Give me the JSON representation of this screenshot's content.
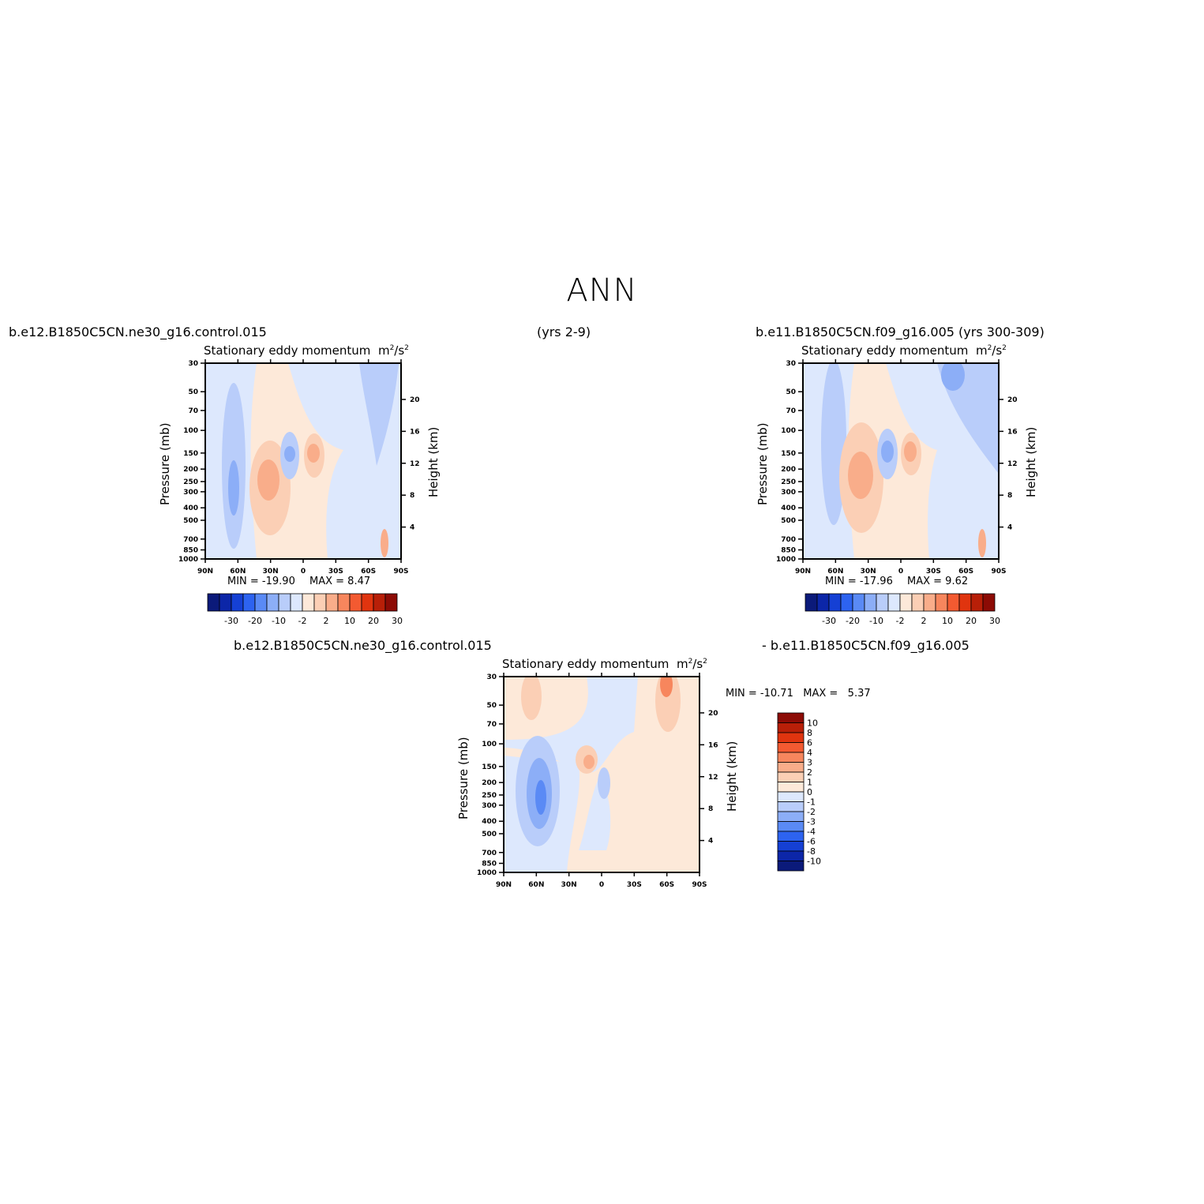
{
  "page": {
    "title": "ANN",
    "top_left_case": "b.e12.B1850C5CN.ne30_g16.control.015",
    "top_center_years": "(yrs 2-9)",
    "top_right_case": "b.e11.B1850C5CN.f09_g16.005 (yrs 300-309)",
    "bottom_case_left": "b.e12.B1850C5CN.ne30_g16.control.015",
    "bottom_case_right": "- b.e11.B1850C5CN.f09_g16.005"
  },
  "panel_title_text": "Stationary eddy momentum",
  "units": {
    "base": "m",
    "exp1": "2",
    "mid": "/s",
    "exp2": "2"
  },
  "axes": {
    "ylabel": "Pressure (mb)",
    "y2label": "Height (km)",
    "pressure_ticks": [
      "30",
      "50",
      "70",
      "100",
      "150",
      "200",
      "250",
      "300",
      "400",
      "500",
      "700",
      "850",
      "1000"
    ],
    "pressure_values": [
      30,
      50,
      70,
      100,
      150,
      200,
      250,
      300,
      400,
      500,
      700,
      850,
      1000
    ],
    "height_ticks": [
      "20",
      "16",
      "12",
      "8",
      "4"
    ],
    "height_values": [
      20,
      16,
      12,
      8,
      4
    ],
    "lat_ticks": [
      "90N",
      "60N",
      "30N",
      "0",
      "30S",
      "60S",
      "90S"
    ],
    "lat_values": [
      90,
      60,
      30,
      0,
      -30,
      -60,
      -90
    ]
  },
  "panels": {
    "p1": {
      "min": "MIN = -19.90",
      "max": "MAX = 8.47"
    },
    "p2": {
      "min": "MIN = -17.96",
      "max": "MAX = 9.62"
    },
    "p3": {
      "minmax": "MIN = -10.71   MAX =   5.37"
    }
  },
  "colorbar_main": {
    "labels": [
      "-30",
      "-20",
      "-10",
      "-2",
      "2",
      "10",
      "20",
      "30"
    ],
    "colors": [
      "#0b1a7a",
      "#0c26a8",
      "#1540d4",
      "#2d63f0",
      "#5a8af5",
      "#8caef7",
      "#b9cdfa",
      "#dde8fd",
      "#fde9d9",
      "#fbcfb5",
      "#f9ad8a",
      "#f7865d",
      "#f35a31",
      "#e0340f",
      "#b81f08",
      "#8c0b05"
    ]
  },
  "colorbar_diff": {
    "labels": [
      "10",
      "8",
      "6",
      "4",
      "3",
      "2",
      "1",
      "0",
      "-1",
      "-2",
      "-3",
      "-4",
      "-6",
      "-8",
      "-10"
    ],
    "colors": [
      "#8c0b05",
      "#b81f08",
      "#e0340f",
      "#f35a31",
      "#f7865d",
      "#f9ad8a",
      "#fbcfb5",
      "#fde9d9",
      "#dde8fd",
      "#b9cdfa",
      "#8caef7",
      "#5a8af5",
      "#2d63f0",
      "#1540d4",
      "#0c26a8",
      "#0b1a7a"
    ]
  },
  "chart_data": [
    {
      "type": "heatmap",
      "title": "Stationary eddy momentum m2/s2",
      "case": "b.e12.B1850C5CN.ne30_g16.control.015",
      "xlabel": "latitude",
      "ylabel": "Pressure (mb)",
      "y2label": "Height (km)",
      "xlim": [
        90,
        -90
      ],
      "ylim": [
        1000,
        30
      ],
      "ylog": true,
      "min": -19.9,
      "max": 8.47,
      "levels": [
        -30,
        -25,
        -20,
        -15,
        -10,
        -5,
        -2,
        -1,
        1,
        2,
        5,
        10,
        15,
        20,
        25,
        30
      ],
      "features": [
        {
          "lat": 60,
          "p": 280,
          "value": -15
        },
        {
          "lat": 30,
          "p": 280,
          "value": 6
        },
        {
          "lat": 10,
          "p": 140,
          "value": -12
        },
        {
          "lat": -10,
          "p": 140,
          "value": 7
        }
      ]
    },
    {
      "type": "heatmap",
      "title": "Stationary eddy momentum m2/s2",
      "case": "b.e11.B1850C5CN.f09_g16.005 (yrs 300-309)",
      "xlabel": "latitude",
      "ylabel": "Pressure (mb)",
      "y2label": "Height (km)",
      "xlim": [
        90,
        -90
      ],
      "ylim": [
        1000,
        30
      ],
      "ylog": true,
      "min": -17.96,
      "max": 9.62,
      "levels": [
        -30,
        -25,
        -20,
        -15,
        -10,
        -5,
        -2,
        -1,
        1,
        2,
        5,
        10,
        15,
        20,
        25,
        30
      ],
      "features": [
        {
          "lat": 60,
          "p": 250,
          "value": -10
        },
        {
          "lat": 33,
          "p": 270,
          "value": 7
        },
        {
          "lat": 13,
          "p": 140,
          "value": -12
        },
        {
          "lat": -10,
          "p": 140,
          "value": 7
        },
        {
          "lat": -60,
          "p": 35,
          "value": -8
        }
      ]
    },
    {
      "type": "heatmap",
      "title": "Stationary eddy momentum m2/s2",
      "case": "b.e12.B1850C5CN.ne30_g16.control.015 - b.e11.B1850C5CN.f09_g16.005",
      "xlabel": "latitude",
      "ylabel": "Pressure (mb)",
      "y2label": "Height (km)",
      "xlim": [
        90,
        -90
      ],
      "ylim": [
        1000,
        30
      ],
      "ylog": true,
      "min": -10.71,
      "max": 5.37,
      "levels": [
        -10,
        -8,
        -6,
        -4,
        -3,
        -2,
        -1,
        0,
        1,
        2,
        3,
        4,
        6,
        8,
        10
      ],
      "features": [
        {
          "lat": 55,
          "p": 280,
          "value": -8
        },
        {
          "lat": 10,
          "p": 140,
          "value": 3
        },
        {
          "lat": -60,
          "p": 35,
          "value": 5
        },
        {
          "lat": -10,
          "p": 250,
          "value": -2
        }
      ]
    }
  ]
}
